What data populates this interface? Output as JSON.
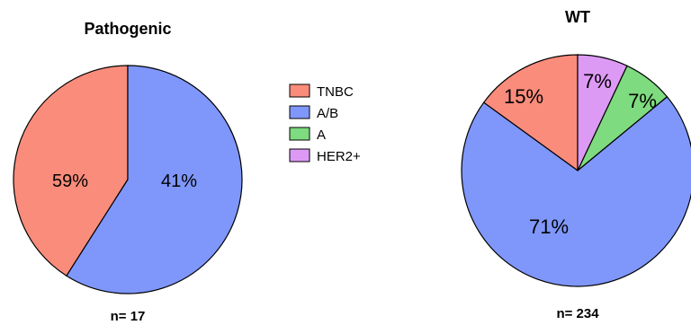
{
  "colors": {
    "TNBC": "#fa8c7c",
    "A/B": "#7f97fb",
    "A": "#7fdb7f",
    "HER2+": "#dd9af5",
    "stroke": "#000000"
  },
  "legend": {
    "items": [
      {
        "label": "TNBC",
        "color": "#fa8c7c"
      },
      {
        "label": "A/B",
        "color": "#7f97fb"
      },
      {
        "label": "A",
        "color": "#7fdb7f"
      },
      {
        "label": "HER2+",
        "color": "#dd9af5"
      }
    ]
  },
  "chart_data": [
    {
      "type": "pie",
      "title": "Pathogenic",
      "n_label": "n= 17",
      "slices": [
        {
          "name": "TNBC",
          "value": 41,
          "label": "41%"
        },
        {
          "name": "A/B",
          "value": 59,
          "label": "59%"
        }
      ]
    },
    {
      "type": "pie",
      "title": "WT",
      "n_label": "n= 234",
      "slices": [
        {
          "name": "TNBC",
          "value": 15,
          "label": "15%"
        },
        {
          "name": "A/B",
          "value": 71,
          "label": "71%"
        },
        {
          "name": "A",
          "value": 7,
          "label": "7%"
        },
        {
          "name": "HER2+",
          "value": 7,
          "label": "7%"
        }
      ]
    }
  ]
}
